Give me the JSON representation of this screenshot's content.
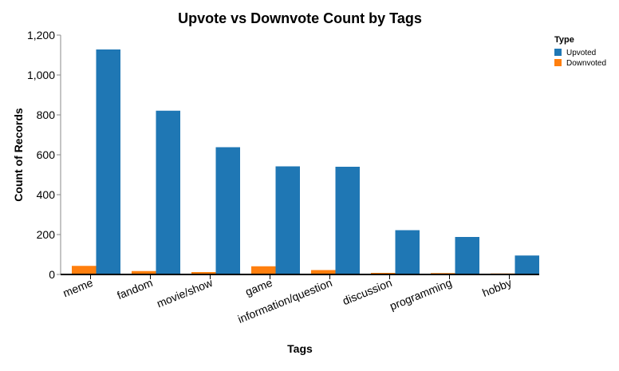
{
  "chart_data": {
    "type": "bar",
    "title": "Upvote vs Downvote Count by Tags",
    "xlabel": "Tags",
    "ylabel": "Count of Records",
    "categories": [
      "meme",
      "fandom",
      "movie/show",
      "game",
      "information/question",
      "discussion",
      "programming",
      "hobby"
    ],
    "series": [
      {
        "name": "Upvoted",
        "color": "#1f77b4",
        "values": [
          1128,
          821,
          638,
          542,
          540,
          222,
          188,
          95
        ]
      },
      {
        "name": "Downvoted",
        "color": "#ff7f0e",
        "values": [
          43,
          17,
          12,
          41,
          22,
          8,
          7,
          5
        ]
      }
    ],
    "ylim": [
      0,
      1200
    ],
    "yticks": [
      0,
      200,
      400,
      600,
      800,
      1000,
      1200
    ],
    "ytick_labels": [
      "0",
      "200",
      "400",
      "600",
      "800",
      "1,000",
      "1,200"
    ],
    "legend": {
      "title": "Type",
      "position": "top-right"
    },
    "grid": false
  }
}
